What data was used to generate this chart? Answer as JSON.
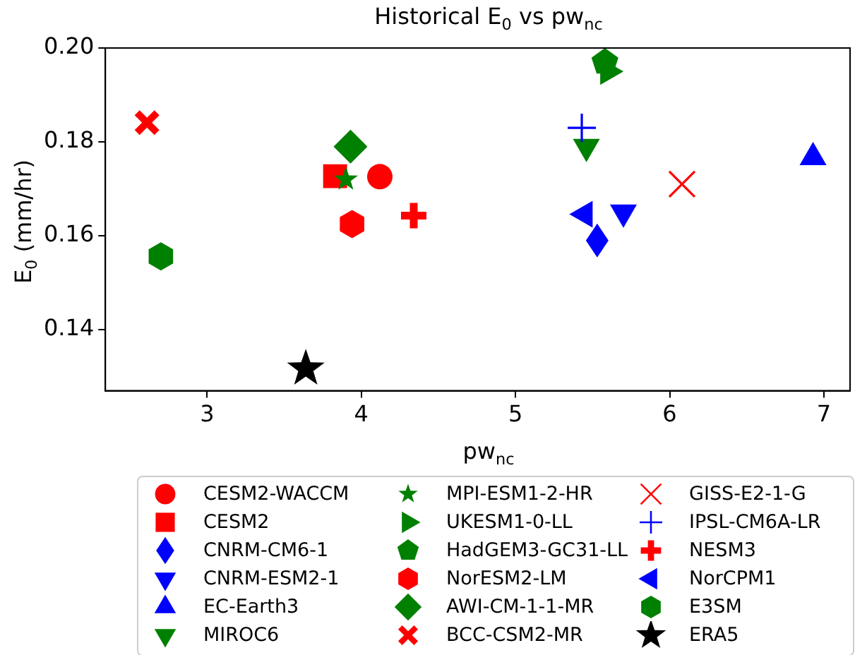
{
  "chart_data": {
    "type": "scatter",
    "title": "Historical E$_{0}$ vs pw$_{nc}$",
    "xlabel": "pw$_{nc}$",
    "ylabel": "E$_{0}$ (mm/hr)",
    "xlim": [
      2.34,
      7.17
    ],
    "xticks": [
      3,
      4,
      5,
      6,
      7
    ],
    "ylim": [
      0.127,
      0.2
    ],
    "yticks": [
      {
        "value": 0.14,
        "label": "0.14"
      },
      {
        "value": 0.16,
        "label": "0.16"
      },
      {
        "value": 0.18,
        "label": "0.18"
      },
      {
        "value": 0.2,
        "label": "0.20"
      }
    ],
    "grid": false,
    "legend": "bottom",
    "series": [
      {
        "name": "CESM2-WACCM",
        "color": "#ff0000",
        "marker": "circle",
        "x": [
          4.12
        ],
        "values": [
          0.1726
        ]
      },
      {
        "name": "CESM2",
        "color": "#ff0000",
        "marker": "square",
        "x": [
          3.83
        ],
        "values": [
          0.1727
        ]
      },
      {
        "name": "CNRM-CM6-1",
        "color": "#0000ff",
        "marker": "diamond",
        "x": [
          5.53
        ],
        "values": [
          0.159
        ]
      },
      {
        "name": "CNRM-ESM2-1",
        "color": "#0000ff",
        "marker": "triangle",
        "x": [
          5.7
        ],
        "values": [
          0.165
        ]
      },
      {
        "name": "EC-Earth3",
        "color": "#0000ff",
        "marker": "triangle",
        "x": [
          6.93
        ],
        "values": [
          0.1767
        ]
      },
      {
        "name": "MIROC6",
        "color": "#008000",
        "marker": "triangle",
        "x": [
          5.46
        ],
        "values": [
          0.179
        ]
      },
      {
        "name": "MPI-ESM1-2-HR",
        "color": "#008000",
        "marker": "star",
        "x": [
          3.9
        ],
        "values": [
          0.172
        ]
      },
      {
        "name": "UKESM1-0-LL",
        "color": "#008000",
        "marker": "triangle",
        "x": [
          5.6
        ],
        "values": [
          0.195
        ]
      },
      {
        "name": "HadGEM3-GC31-LL",
        "color": "#008000",
        "x": [
          5.58
        ],
        "values": [
          0.197
        ]
      },
      {
        "name": "NorESM2-LM",
        "color": "#ff0000",
        "x": [
          3.94
        ],
        "values": [
          0.1625
        ]
      },
      {
        "name": "AWI-CM-1-1-MR",
        "color": "#008000",
        "marker": "diamond",
        "x": [
          3.93
        ],
        "values": [
          0.179
        ]
      },
      {
        "name": "BCC-CSM2-MR",
        "color": "#ff0000",
        "marker": "cross",
        "x": [
          2.61
        ],
        "values": [
          0.1841
        ]
      },
      {
        "name": "GISS-E2-1-G",
        "color": "#ff0000",
        "marker": "cross",
        "x": [
          6.08
        ],
        "values": [
          0.171
        ]
      },
      {
        "name": "IPSL-CM6A-LR",
        "color": "#0000ff",
        "marker": "cross",
        "x": [
          5.43
        ],
        "values": [
          0.183
        ]
      },
      {
        "name": "NESM3",
        "color": "#ff0000",
        "marker": "cross",
        "x": [
          4.34
        ],
        "values": [
          0.1643
        ]
      },
      {
        "name": "NorCPM1",
        "color": "#0000ff",
        "marker": "triangle",
        "x": [
          5.45
        ],
        "values": [
          0.1646
        ]
      },
      {
        "name": "E3SM",
        "color": "#008000",
        "x": [
          2.7
        ],
        "values": [
          0.1556
        ]
      },
      {
        "name": "ERA5",
        "color": "#000000",
        "marker": "star",
        "x": [
          3.64
        ],
        "values": [
          0.1317
        ]
      }
    ]
  }
}
